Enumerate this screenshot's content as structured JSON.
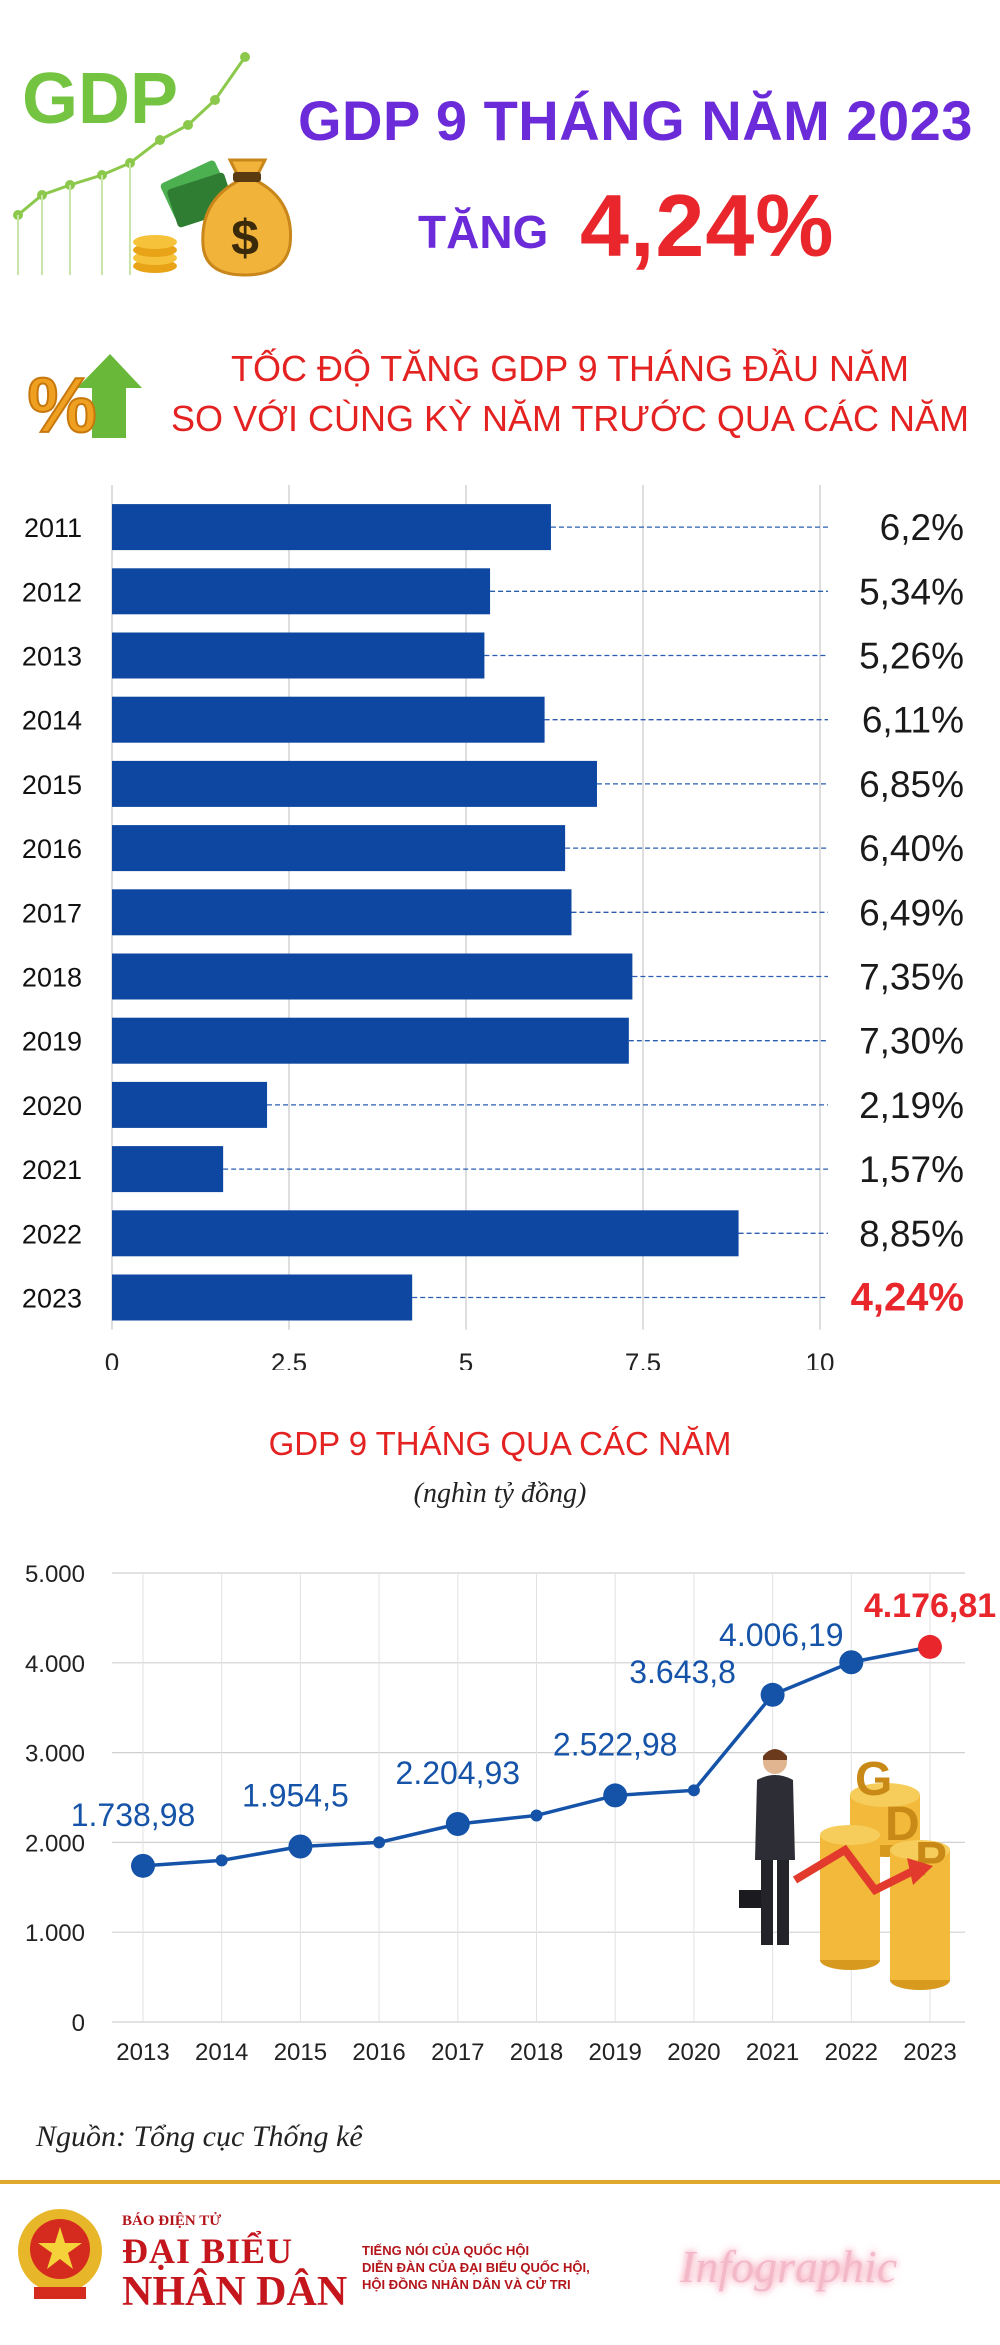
{
  "header": {
    "logo_text": "GDP",
    "title": "GDP 9 THÁNG NĂM 2023",
    "subtitle_label": "TĂNG",
    "subtitle_value": "4,24%"
  },
  "section1": {
    "title_line1": "TỐC ĐỘ TĂNG GDP 9 THÁNG ĐẦU NĂM",
    "title_line2": "SO VỚI CÙNG KỲ NĂM TRƯỚC QUA CÁC NĂM"
  },
  "section2": {
    "title": "GDP 9 THÁNG QUA CÁC NĂM",
    "unit": "(nghìn tỷ đồng)"
  },
  "source": "Nguồn: Tổng cục Thống kê",
  "footer": {
    "brand_top": "BÁO ĐIỆN TỬ",
    "brand_name1": "ĐẠI BIỂU",
    "brand_name2": "NHÂN DÂN",
    "tagline1": "TIẾNG NÓI CỦA QUỐC HỘI",
    "tagline2": "DIỄN ĐÀN CỦA ĐẠI BIỂU QUỐC HỘI,",
    "tagline3": "HỘI ĐỒNG NHÂN DÂN VÀ CỬ TRI",
    "label": "Infographic"
  },
  "colors": {
    "bar": "#0d47a1",
    "line": "#1553a8",
    "highlight": "#e8262b",
    "title_purple": "#6b2bd9",
    "green": "#74c442"
  },
  "chart_data": [
    {
      "type": "bar",
      "orientation": "horizontal",
      "categories": [
        "2011",
        "2012",
        "2013",
        "2014",
        "2015",
        "2016",
        "2017",
        "2018",
        "2019",
        "2020",
        "2021",
        "2022",
        "2023"
      ],
      "values": [
        6.2,
        5.34,
        5.26,
        6.11,
        6.85,
        6.4,
        6.49,
        7.35,
        7.3,
        2.19,
        1.57,
        8.85,
        4.24
      ],
      "labels": [
        "6,2%",
        "5,34%",
        "5,26%",
        "6,11%",
        "6,85%",
        "6,40%",
        "6,49%",
        "7,35%",
        "7,30%",
        "2,19%",
        "1,57%",
        "8,85%",
        "4,24%"
      ],
      "xlim": [
        0,
        10
      ],
      "xticks": [
        "0",
        "2,5",
        "5",
        "7,5",
        "10"
      ],
      "grid": true,
      "highlight_category": "2023"
    },
    {
      "type": "line",
      "x": [
        "2013",
        "2014",
        "2015",
        "2016",
        "2017",
        "2018",
        "2019",
        "2020",
        "2021",
        "2022",
        "2023"
      ],
      "values": [
        1738.98,
        1800,
        1954.5,
        2000,
        2204.93,
        2300,
        2522.98,
        2580,
        3643.8,
        4006.19,
        4176.81
      ],
      "labels": [
        "1.738,98",
        "",
        "1.954,5",
        "",
        "2.204,93",
        "",
        "2.522,98",
        "",
        "3.643,8",
        "4.006,19",
        "4.176,81"
      ],
      "ylim": [
        0,
        5000
      ],
      "yticks": [
        "0",
        "1.000",
        "2.000",
        "3.000",
        "4.000",
        "5.000"
      ],
      "grid": true,
      "highlight_x": "2023"
    }
  ]
}
